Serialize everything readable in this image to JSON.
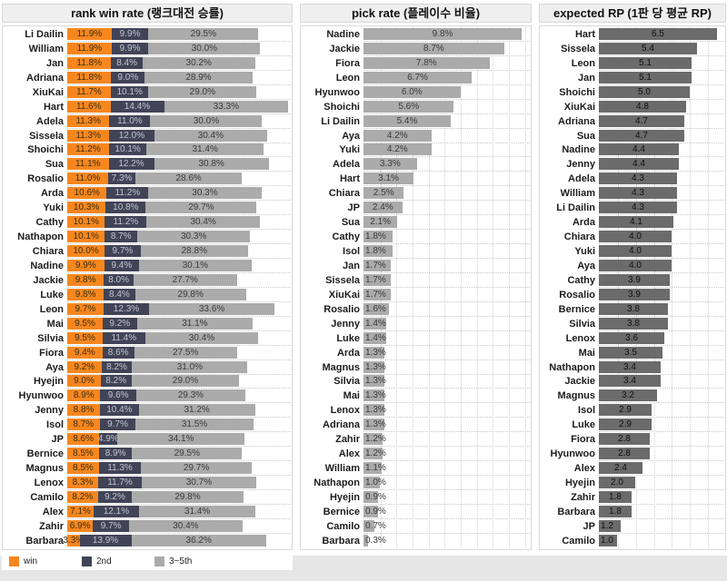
{
  "colors": {
    "win": "#f6871f",
    "second": "#414457",
    "third": "#ababab",
    "pick_bar": "#ababab",
    "rp_bar": "#6b6b6b",
    "header_bg": "#efefef"
  },
  "legend": {
    "items": [
      {
        "label": "win",
        "color": "#f6871f"
      },
      {
        "label": "2nd",
        "color": "#414457"
      },
      {
        "label": "3~5th",
        "color": "#ababab"
      }
    ]
  },
  "chart_data": [
    {
      "type": "bar",
      "orientation": "horizontal",
      "stacked": true,
      "title": "rank win rate (랭크대전 승률)",
      "value_suffix": "%",
      "xlim": [
        0,
        60
      ],
      "grid": false,
      "legend_position": "bottom",
      "categories": [
        "Li Dailin",
        "William",
        "Jan",
        "Adriana",
        "XiuKai",
        "Hart",
        "Adela",
        "Sissela",
        "Shoichi",
        "Sua",
        "Rosalio",
        "Arda",
        "Yuki",
        "Cathy",
        "Nathapon",
        "Chiara",
        "Nadine",
        "Jackie",
        "Luke",
        "Leon",
        "Mai",
        "Silvia",
        "Fiora",
        "Aya",
        "Hyejin",
        "Hyunwoo",
        "Jenny",
        "Isol",
        "JP",
        "Bernice",
        "Magnus",
        "Lenox",
        "Camilo",
        "Alex",
        "Zahir",
        "Barbara"
      ],
      "series": [
        {
          "name": "win",
          "color": "#f6871f",
          "values": [
            11.9,
            11.9,
            11.8,
            11.8,
            11.7,
            11.6,
            11.3,
            11.3,
            11.2,
            11.1,
            11.0,
            10.6,
            10.3,
            10.1,
            10.1,
            10.0,
            9.9,
            9.8,
            9.8,
            9.7,
            9.5,
            9.5,
            9.4,
            9.2,
            9.0,
            8.9,
            8.8,
            8.7,
            8.6,
            8.5,
            8.5,
            8.3,
            8.2,
            7.1,
            6.9,
            3.3
          ]
        },
        {
          "name": "2nd",
          "color": "#414457",
          "values": [
            9.9,
            9.9,
            8.4,
            9.0,
            10.1,
            14.4,
            11.0,
            12.0,
            10.1,
            12.2,
            7.3,
            11.2,
            10.8,
            11.2,
            8.7,
            9.7,
            9.4,
            8.0,
            8.4,
            12.3,
            9.2,
            11.4,
            8.6,
            8.2,
            8.2,
            9.6,
            10.4,
            9.7,
            4.9,
            8.9,
            11.3,
            11.7,
            9.2,
            12.1,
            9.7,
            13.9
          ]
        },
        {
          "name": "3~5th",
          "color": "#ababab",
          "values": [
            29.5,
            30.0,
            30.2,
            28.9,
            29.0,
            33.3,
            30.0,
            30.4,
            31.4,
            30.8,
            28.6,
            30.3,
            29.7,
            30.4,
            30.3,
            28.8,
            30.1,
            27.7,
            29.8,
            33.6,
            31.1,
            30.4,
            27.5,
            31.0,
            29.0,
            29.3,
            31.2,
            31.5,
            34.1,
            29.5,
            29.7,
            30.7,
            29.8,
            31.4,
            30.4,
            36.2
          ]
        }
      ]
    },
    {
      "type": "bar",
      "orientation": "horizontal",
      "stacked": false,
      "title": "pick rate (플레이수 비율)",
      "value_suffix": "%",
      "xlim": [
        0,
        10.3
      ],
      "grid": true,
      "grid_step": 1,
      "bar_color": "#ababab",
      "categories": [
        "Nadine",
        "Jackie",
        "Fiora",
        "Leon",
        "Hyunwoo",
        "Shoichi",
        "Li Dailin",
        "Aya",
        "Yuki",
        "Adela",
        "Hart",
        "Chiara",
        "JP",
        "Sua",
        "Cathy",
        "Isol",
        "Jan",
        "Sissela",
        "XiuKai",
        "Rosalio",
        "Jenny",
        "Luke",
        "Arda",
        "Magnus",
        "Silvia",
        "Mai",
        "Lenox",
        "Adriana",
        "Zahir",
        "Alex",
        "William",
        "Nathapon",
        "Hyejin",
        "Bernice",
        "Camilo",
        "Barbara"
      ],
      "values": [
        9.8,
        8.7,
        7.8,
        6.7,
        6.0,
        5.6,
        5.4,
        4.2,
        4.2,
        3.3,
        3.1,
        2.5,
        2.4,
        2.1,
        1.8,
        1.8,
        1.7,
        1.7,
        1.7,
        1.6,
        1.4,
        1.4,
        1.3,
        1.3,
        1.3,
        1.3,
        1.3,
        1.3,
        1.2,
        1.2,
        1.1,
        1.0,
        0.9,
        0.9,
        0.7,
        0.3
      ]
    },
    {
      "type": "bar",
      "orientation": "horizontal",
      "stacked": false,
      "title": "expected RP (1판 당 평균 RP)",
      "value_suffix": "",
      "xlim": [
        0,
        6.9
      ],
      "grid": true,
      "grid_step": 1,
      "bar_color": "#6b6b6b",
      "categories": [
        "Hart",
        "Sissela",
        "Leon",
        "Jan",
        "Shoichi",
        "XiuKai",
        "Adriana",
        "Sua",
        "Nadine",
        "Jenny",
        "Adela",
        "William",
        "Li Dailin",
        "Arda",
        "Chiara",
        "Yuki",
        "Aya",
        "Cathy",
        "Rosalio",
        "Bernice",
        "Silvia",
        "Lenox",
        "Mai",
        "Nathapon",
        "Jackie",
        "Magnus",
        "Isol",
        "Luke",
        "Fiora",
        "Hyunwoo",
        "Alex",
        "Hyejin",
        "Zahir",
        "Barbara",
        "JP",
        "Camilo"
      ],
      "values": [
        6.5,
        5.4,
        5.1,
        5.1,
        5.0,
        4.8,
        4.7,
        4.7,
        4.4,
        4.4,
        4.3,
        4.3,
        4.3,
        4.1,
        4.0,
        4.0,
        4.0,
        3.9,
        3.9,
        3.8,
        3.8,
        3.6,
        3.5,
        3.4,
        3.4,
        3.2,
        2.9,
        2.9,
        2.8,
        2.8,
        2.4,
        2.0,
        1.8,
        1.8,
        1.2,
        1.0
      ]
    }
  ]
}
